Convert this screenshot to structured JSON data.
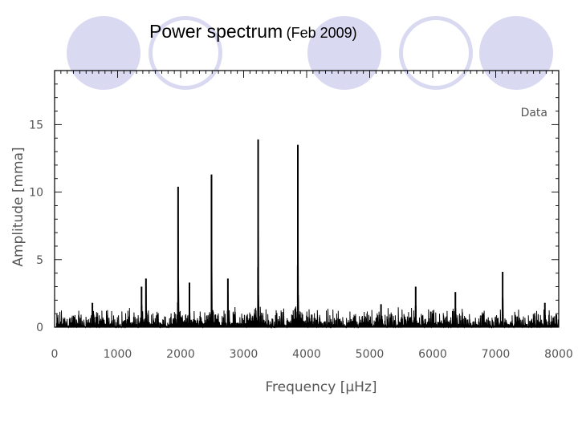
{
  "slide": {
    "title": "Power spectrum",
    "title_suffix": "(Feb 2009)",
    "decor_color": "#d9d9f1"
  },
  "chart_data": {
    "type": "line",
    "title": "",
    "xlabel": "Frequency [μHz]",
    "ylabel": "Amplitude [mma]",
    "xlim": [
      0,
      8000
    ],
    "ylim": [
      0,
      19
    ],
    "xticks": [
      0,
      1000,
      2000,
      3000,
      4000,
      5000,
      6000,
      7000,
      8000
    ],
    "yticks": [
      0,
      5,
      10,
      15
    ],
    "grid": false,
    "legend": "top-right",
    "series": [
      {
        "name": "Data",
        "color": "#000000",
        "noise_level": 0.7,
        "peaks": [
          {
            "x": 600,
            "y": 1.8
          },
          {
            "x": 1380,
            "y": 3.0
          },
          {
            "x": 1450,
            "y": 3.6
          },
          {
            "x": 1960,
            "y": 10.4
          },
          {
            "x": 2140,
            "y": 3.3
          },
          {
            "x": 2490,
            "y": 11.3
          },
          {
            "x": 2750,
            "y": 3.6
          },
          {
            "x": 3230,
            "y": 13.9
          },
          {
            "x": 3860,
            "y": 13.5
          },
          {
            "x": 5180,
            "y": 1.7
          },
          {
            "x": 5730,
            "y": 3.0
          },
          {
            "x": 6360,
            "y": 2.6
          },
          {
            "x": 7110,
            "y": 4.1
          },
          {
            "x": 7780,
            "y": 1.8
          }
        ]
      }
    ]
  }
}
